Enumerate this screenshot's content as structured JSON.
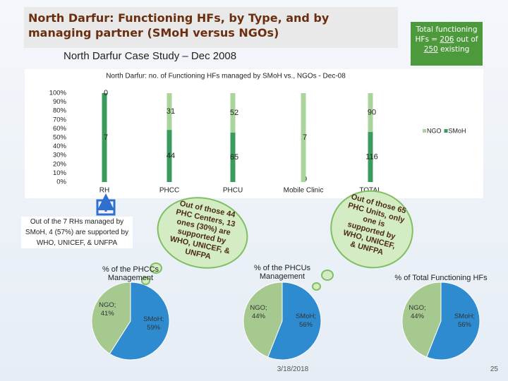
{
  "slide": {
    "title": "North Darfur: Functioning HFs, by Type, and by managing partner (SMoH versus NGOs)",
    "subtitle": "North Darfur Case Study – Dec 2008",
    "total_box": {
      "pre": "Total functioning HFs =",
      "total": "206",
      "mid": "out of",
      "existing": "250",
      "post": "existing"
    },
    "rh_note": "Out of the 7 RHs managed by SMoH, 4 (57%) are supported by WHO, UNICEF, & UNFPA",
    "phcc_note": "Out of those 44 PHC Centers, 13 ones (30%) are supported by WHO, UNICEF, & UNFPA",
    "phcu_note": "Out of those 65 PHC Units, only one is supported by WHO, UNICEF, & UNFPA",
    "date": "3/18/2018",
    "page": "25"
  },
  "chart_data": [
    {
      "type": "bar",
      "stacked": "percent",
      "title": "North Darfur: no. of Functioning HFs managed by SMoH vs., NGOs - Dec-08",
      "categories": [
        "RH",
        "PHCC",
        "PHCU",
        "Mobile Clinic",
        "TOTAL"
      ],
      "series": [
        {
          "name": "NGO",
          "color": "#a9d49b",
          "values": [
            0,
            31,
            52,
            7,
            90
          ]
        },
        {
          "name": "SMoH",
          "color": "#3a9b5c",
          "values": [
            7,
            44,
            65,
            0,
            116
          ]
        }
      ],
      "ylim": [
        0,
        100
      ],
      "yticks": [
        {
          "value": 0,
          "label": "0%"
        },
        {
          "value": 10,
          "label": "10%"
        },
        {
          "value": 20,
          "label": "20%"
        },
        {
          "value": 30,
          "label": "30%"
        },
        {
          "value": 40,
          "label": "40%"
        },
        {
          "value": 50,
          "label": "50%"
        },
        {
          "value": 60,
          "label": "60%"
        },
        {
          "value": 70,
          "label": "70%"
        },
        {
          "value": 80,
          "label": "80%"
        },
        {
          "value": 90,
          "label": "90%"
        },
        {
          "value": 100,
          "label": "100%"
        }
      ],
      "legend": "right"
    },
    {
      "type": "pie",
      "title": "% of the PHCCs Management",
      "values": [
        41,
        59
      ],
      "value_labels": [
        "NGO; 41%",
        "SMoH; 59%"
      ],
      "colors": [
        "#a5c98f",
        "#2e8bd0"
      ]
    },
    {
      "type": "pie",
      "title": "% of the PHCUs Management",
      "values": [
        44,
        56
      ],
      "value_labels": [
        "NGO; 44%",
        "SMoH; 56%"
      ],
      "colors": [
        "#a5c98f",
        "#2e8bd0"
      ]
    },
    {
      "type": "pie",
      "title": "% of Total Functioning HFs",
      "values": [
        44,
        56
      ],
      "value_labels": [
        "NGO; 44%",
        "SMoH; 56%"
      ],
      "colors": [
        "#a5c98f",
        "#2e8bd0"
      ]
    }
  ]
}
